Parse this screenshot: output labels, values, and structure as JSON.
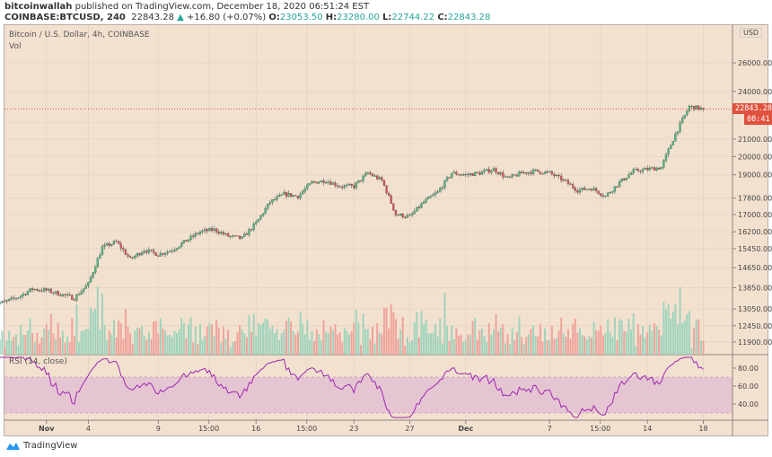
{
  "header": {
    "author": "bitcoinwallah",
    "published": "published on TradingView.com, December 18, 2020 06:51:24 EST",
    "symbol": "COINBASE:BTCUSD, 240",
    "last": "22843.28",
    "change": "+16.80 (+0.07%)",
    "o_label": "O:",
    "o": "23053.50",
    "h_label": "H:",
    "h": "23280.00",
    "l_label": "L:",
    "l": "22744.22",
    "c_label": "C:",
    "c": "22843.28"
  },
  "legend": {
    "title": "Bitcoin / U.S. Dollar, 4h, COINBASE",
    "vol": "Vol",
    "rsi": "RSI (14, close)"
  },
  "currency": "USD",
  "price_tag": "22843.28",
  "countdown": "08:41",
  "footer": {
    "brand": "TradingView"
  },
  "colors": {
    "up": "#53b987",
    "down": "#eb4d5c",
    "rsi": "#9c27b0",
    "band": "#e6c5d3",
    "bg": "#f3e1cf",
    "tag": "#e0513e"
  },
  "chart_data": [
    {
      "type": "candlestick",
      "interval": "4h",
      "yscale": "log",
      "y_ticks": [
        26000,
        24000,
        21000,
        20000,
        19000,
        17800,
        17000,
        16200,
        15450,
        14650,
        13850,
        13050,
        12450,
        11900
      ],
      "y_tick_labels": [
        "26000.00",
        "24000.00",
        "21000.00",
        "20000.00",
        "19000.00",
        "17800.00",
        "17000.00",
        "16200.00",
        "15450.00",
        "14650.00",
        "13850.00",
        "13050.00",
        "12450.00",
        "11900.00"
      ],
      "x_ticks": [
        {
          "date": "2020-11-01",
          "label": "Nov"
        },
        {
          "date": "2020-11-04",
          "label": "4"
        },
        {
          "date": "2020-11-09",
          "label": "9"
        },
        {
          "date": "2020-11-12.625",
          "label": "15:00"
        },
        {
          "date": "2020-11-16",
          "label": "16"
        },
        {
          "date": "2020-11-19.625",
          "label": "15:00"
        },
        {
          "date": "2020-11-23",
          "label": "23"
        },
        {
          "date": "2020-11-27",
          "label": "27"
        },
        {
          "date": "2020-12-01",
          "label": "Dec"
        },
        {
          "date": "2020-12-07",
          "label": "7"
        },
        {
          "date": "2020-12-10.625",
          "label": "15:00"
        },
        {
          "date": "2020-12-14",
          "label": "14"
        },
        {
          "date": "2020-12-18",
          "label": "18"
        }
      ],
      "daily_close": {
        "dates": [
          "10-29",
          "10-30",
          "10-31",
          "11-01",
          "11-02",
          "11-03",
          "11-04",
          "11-05",
          "11-06",
          "11-07",
          "11-08",
          "11-09",
          "11-10",
          "11-11",
          "11-12",
          "11-13",
          "11-14",
          "11-15",
          "11-16",
          "11-17",
          "11-18",
          "11-19",
          "11-20",
          "11-21",
          "11-22",
          "11-23",
          "11-24",
          "11-25",
          "11-26",
          "11-27",
          "11-28",
          "11-29",
          "11-30",
          "12-01",
          "12-02",
          "12-03",
          "12-04",
          "12-05",
          "12-06",
          "12-07",
          "12-08",
          "12-09",
          "12-10",
          "12-11",
          "12-12",
          "12-13",
          "12-14",
          "12-15",
          "12-16",
          "12-17",
          "12-18"
        ],
        "close": [
          13300,
          13500,
          13800,
          13750,
          13600,
          13450,
          14000,
          15500,
          15750,
          15000,
          15400,
          15200,
          15400,
          15800,
          16200,
          16300,
          16000,
          15900,
          16600,
          17600,
          18000,
          17900,
          18600,
          18700,
          18400,
          18400,
          19100,
          18700,
          17000,
          16900,
          17600,
          18100,
          19100,
          19000,
          19100,
          19300,
          18800,
          19100,
          19200,
          19100,
          18700,
          18200,
          18300,
          17900,
          18600,
          19200,
          19300,
          19400,
          21300,
          23000,
          22843.28
        ]
      },
      "last_price": 22843.28
    },
    {
      "type": "line",
      "name": "RSI (14, close)",
      "y_ticks": [
        80,
        60,
        40
      ],
      "y_tick_labels": [
        "80.00",
        "60.00",
        "40.00"
      ],
      "bands": [
        70,
        30
      ]
    }
  ]
}
